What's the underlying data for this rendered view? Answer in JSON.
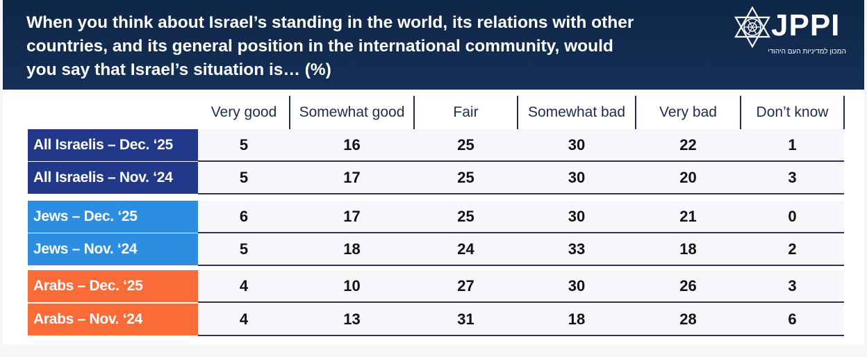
{
  "title": "When you think about Israel’s standing in the world, its relations with other\ncountries, and its general position in the international community, would\nyou say that Israel’s situation is… (%)",
  "logo": {
    "text": "JPPI",
    "subtitle": "המכון למדיניות העם היהודי",
    "icon": "star-of-david-icon"
  },
  "colors": {
    "header_bg": "#0f2746",
    "all_israelis": "#22398a",
    "jews": "#2b8ee0",
    "arabs": "#fa6c37"
  },
  "chart_data": {
    "type": "table",
    "columns": [
      "Very good",
      "Somewhat good",
      "Fair",
      "Somewhat bad",
      "Very bad",
      "Don’t know"
    ],
    "rows": [
      {
        "label": "All Israelis – Dec. ‘25",
        "group": "all_israelis",
        "values": [
          5,
          16,
          25,
          30,
          22,
          1
        ]
      },
      {
        "label": "All Israelis – Nov. ‘24",
        "group": "all_israelis",
        "values": [
          5,
          17,
          25,
          30,
          20,
          3
        ]
      },
      {
        "label": "Jews – Dec. ‘25",
        "group": "jews",
        "values": [
          6,
          17,
          25,
          30,
          21,
          0
        ]
      },
      {
        "label": "Jews – Nov. ‘24",
        "group": "jews",
        "values": [
          5,
          18,
          24,
          33,
          18,
          2
        ]
      },
      {
        "label": "Arabs – Dec. ‘25",
        "group": "arabs",
        "values": [
          4,
          10,
          27,
          30,
          26,
          3
        ]
      },
      {
        "label": "Arabs – Nov. ‘24",
        "group": "arabs",
        "values": [
          4,
          13,
          31,
          18,
          28,
          6
        ]
      }
    ]
  }
}
